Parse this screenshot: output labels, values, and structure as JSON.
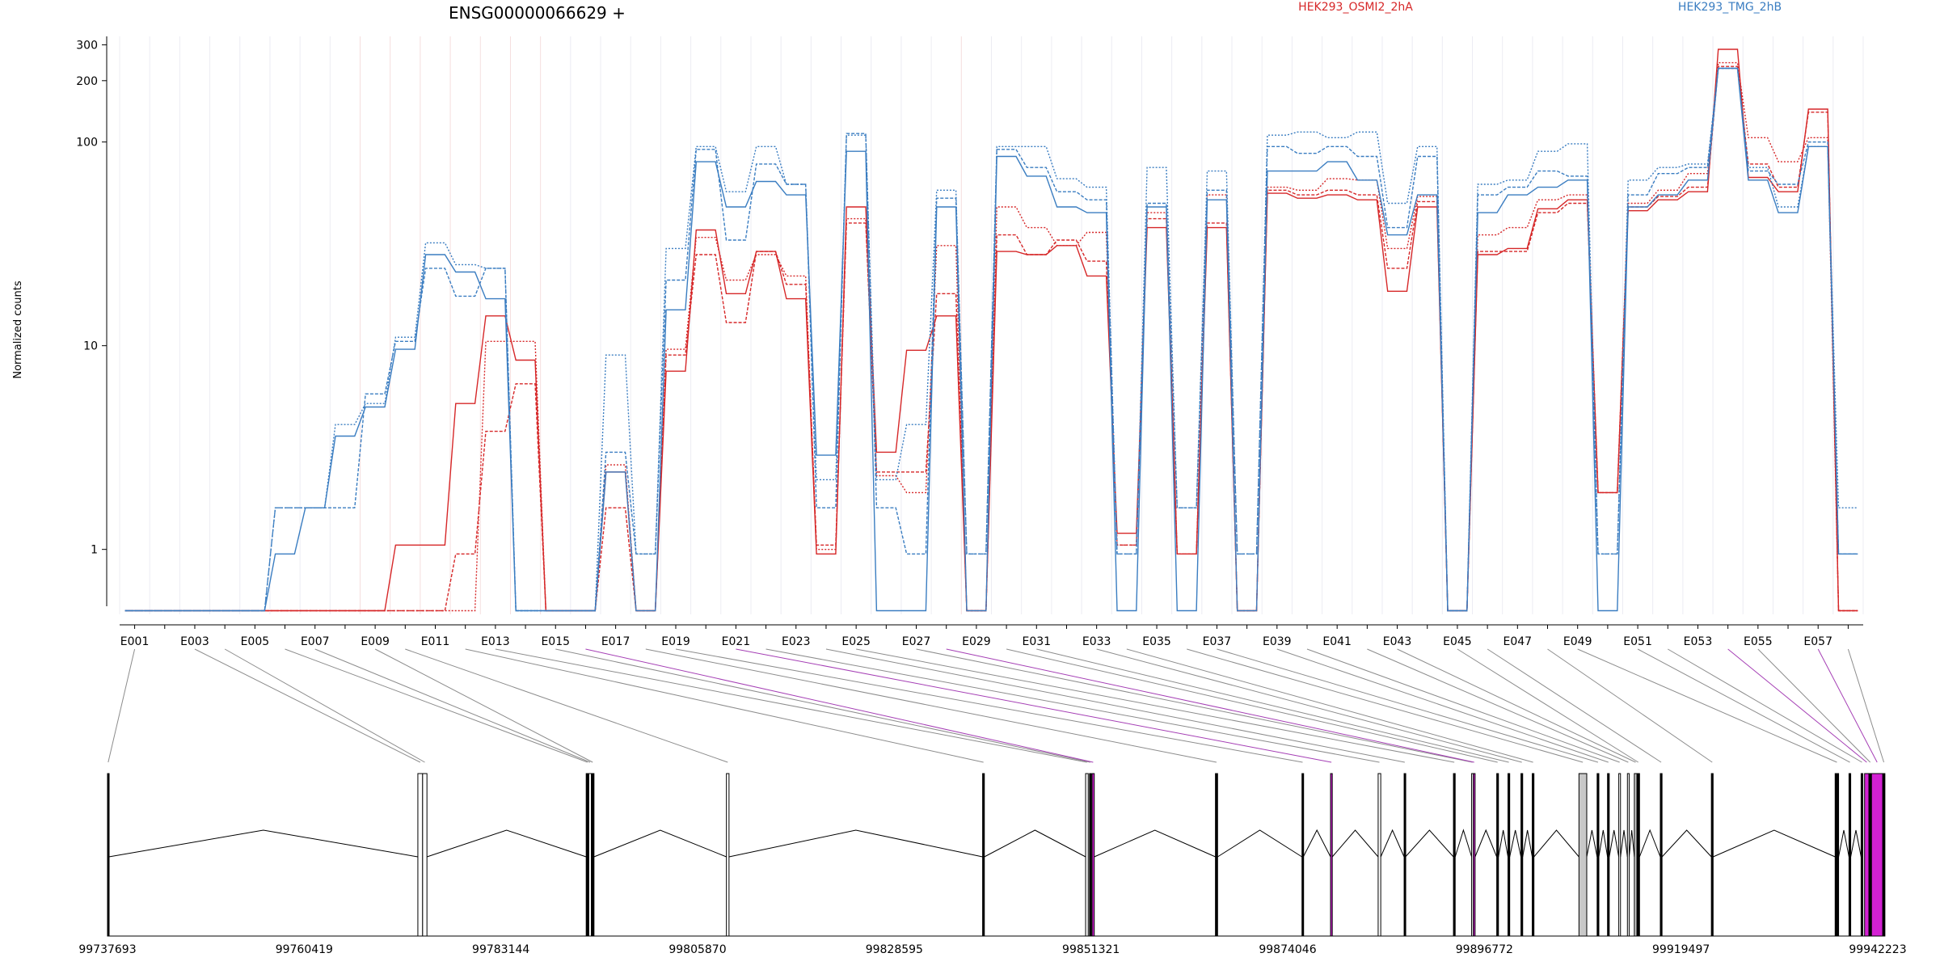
{
  "chart_data": {
    "type": "line",
    "title": "ENSG00000066629 +",
    "ylabel": "Normalized counts",
    "xlabel": "",
    "y_scale": "log",
    "y_ticks": [
      1,
      10,
      100,
      200,
      300
    ],
    "y_tick_labels": [
      "1",
      "10",
      "100",
      "200",
      "300"
    ],
    "ylim": [
      0.48,
      330
    ],
    "grid": "vertical per exon",
    "legend": [
      {
        "name": "HEK293_OSMI2_2hA",
        "color": "#d62728"
      },
      {
        "name": "HEK293_TMG_2hB",
        "color": "#3a7dc1"
      }
    ],
    "legend_placement": "top",
    "exon_tick_labels": [
      "E001",
      "E003",
      "E005",
      "E007",
      "E009",
      "E011",
      "E013",
      "E015",
      "E017",
      "E019",
      "E021",
      "E023",
      "E025",
      "E027",
      "E029",
      "E031",
      "E033",
      "E035",
      "E037",
      "E039",
      "E041",
      "E043",
      "E045",
      "E047",
      "E049",
      "E051",
      "E053",
      "E055",
      "E057"
    ],
    "series": [
      {
        "name": "HEK293_OSMI2_2hA",
        "color": "#d62728",
        "replicates": [
          [
            0.5,
            0.5,
            0.5,
            0.5,
            0.5,
            0.5,
            0.5,
            0.5,
            0.5,
            1.05,
            1.05,
            5.2,
            14.0,
            8.5,
            0.5,
            0.5,
            2.4,
            0.5,
            7.5,
            37,
            18,
            29,
            17,
            0.95,
            48,
            3.0,
            9.5,
            14,
            0.5,
            29,
            28,
            31,
            22,
            1.2,
            38,
            0.95,
            38,
            0.5,
            56,
            53,
            55,
            52,
            18.5,
            48,
            0.5,
            28,
            30,
            47,
            52,
            1.9,
            46,
            52,
            57,
            285,
            67,
            57,
            145,
            0.5
          ],
          [
            0.5,
            0.5,
            0.5,
            0.5,
            0.5,
            0.5,
            0.5,
            0.5,
            0.5,
            0.5,
            0.5,
            0.95,
            3.8,
            6.5,
            0.5,
            0.5,
            1.6,
            0.5,
            9.0,
            28,
            13,
            29,
            20,
            1.05,
            40,
            2.4,
            2.4,
            18,
            0.5,
            35,
            28,
            33,
            26,
            1.05,
            42,
            0.95,
            40,
            0.5,
            58,
            55,
            58,
            55,
            24,
            51,
            0.5,
            29,
            29,
            45,
            50,
            1.9,
            48,
            54,
            60,
            235,
            78,
            60,
            140,
            0.5
          ],
          [
            0.5,
            0.5,
            0.5,
            0.5,
            0.5,
            0.5,
            0.5,
            0.5,
            0.5,
            0.5,
            0.5,
            0.5,
            10.5,
            10.5,
            0.5,
            0.5,
            2.6,
            0.5,
            9.6,
            34,
            21,
            28,
            22,
            1.0,
            42,
            2.3,
            1.9,
            31,
            0.5,
            48,
            38,
            31,
            36,
            1.05,
            45,
            0.95,
            55,
            0.5,
            60,
            58,
            66,
            65,
            30,
            54,
            0.5,
            35,
            38,
            52,
            55,
            1.9,
            50,
            58,
            70,
            245,
            105,
            80,
            105,
            0.5
          ]
        ]
      },
      {
        "name": "HEK293_TMG_2hB",
        "color": "#3a7dc1",
        "replicates": [
          [
            0.5,
            0.5,
            0.5,
            0.5,
            0.5,
            0.95,
            1.6,
            3.6,
            5.0,
            9.6,
            28,
            23,
            17,
            0.5,
            0.5,
            0.5,
            2.4,
            0.5,
            15,
            80,
            48,
            64,
            55,
            2.9,
            90,
            0.5,
            0.5,
            48,
            0.5,
            85,
            68,
            48,
            45,
            0.5,
            48,
            0.5,
            52,
            0.5,
            72,
            72,
            80,
            65,
            35,
            55,
            0.5,
            45,
            55,
            60,
            65,
            0.5,
            48,
            55,
            65,
            230,
            65,
            45,
            95,
            0.95
          ],
          [
            0.5,
            0.5,
            0.5,
            0.5,
            0.5,
            1.6,
            1.6,
            1.6,
            5.8,
            10.5,
            24,
            17.5,
            24,
            0.5,
            0.5,
            0.5,
            3.0,
            0.95,
            21,
            92,
            33,
            78,
            62,
            1.6,
            110,
            1.6,
            0.95,
            53,
            0.95,
            92,
            75,
            57,
            52,
            0.95,
            50,
            1.6,
            58,
            0.95,
            95,
            88,
            95,
            85,
            38,
            85,
            0.5,
            55,
            60,
            72,
            68,
            0.95,
            55,
            70,
            75,
            230,
            72,
            62,
            100,
            0.95
          ],
          [
            0.5,
            0.5,
            0.5,
            0.5,
            0.5,
            1.6,
            1.6,
            4.1,
            5.2,
            11,
            32,
            25,
            24,
            0.5,
            0.5,
            0.5,
            9.0,
            0.95,
            30,
            95,
            57,
            95,
            62,
            2.2,
            108,
            2.2,
            4.1,
            58,
            0.95,
            95,
            95,
            66,
            60,
            0.95,
            75,
            1.6,
            72,
            0.95,
            108,
            112,
            105,
            112,
            50,
            95,
            0.5,
            62,
            65,
            90,
            98,
            0.95,
            65,
            75,
            78,
            230,
            75,
            48,
            95,
            1.6
          ]
        ]
      }
    ],
    "gene_model": {
      "coordinate_labels": [
        "99737693",
        "99760419",
        "99783144",
        "99805870",
        "99828595",
        "99851321",
        "99874046",
        "99896772",
        "99919497",
        "99942223"
      ],
      "coordinate_values": [
        99737693,
        99760419,
        99783144,
        99805870,
        99828595,
        99851321,
        99874046,
        99896772,
        99919497,
        99942223
      ],
      "exons": [
        {
          "start": 99737693,
          "end": 99737850,
          "color": "#000000"
        },
        {
          "start": 99773550,
          "end": 99774100,
          "color": "#ffffff"
        },
        {
          "start": 99774100,
          "end": 99774600,
          "color": "#ffffff"
        },
        {
          "start": 99793000,
          "end": 99793300,
          "color": "#000000"
        },
        {
          "start": 99793300,
          "end": 99793600,
          "color": "#ffffff"
        },
        {
          "start": 99793600,
          "end": 99793900,
          "color": "#000000"
        },
        {
          "start": 99809200,
          "end": 99809500,
          "color": "#ffffff"
        },
        {
          "start": 99838800,
          "end": 99839000,
          "color": "#000000"
        },
        {
          "start": 99850700,
          "end": 99851000,
          "color": "#ffffff"
        },
        {
          "start": 99851150,
          "end": 99851350,
          "color": "#000000"
        },
        {
          "start": 99851450,
          "end": 99851700,
          "color": "#d321d3"
        },
        {
          "start": 99865700,
          "end": 99865950,
          "color": "#000000"
        },
        {
          "start": 99875700,
          "end": 99875850,
          "color": "#000000"
        },
        {
          "start": 99879000,
          "end": 99879200,
          "color": "#d321d3"
        },
        {
          "start": 99884500,
          "end": 99884800,
          "color": "#ffffff"
        },
        {
          "start": 99887500,
          "end": 99887650,
          "color": "#000000"
        },
        {
          "start": 99893200,
          "end": 99893400,
          "color": "#000000"
        },
        {
          "start": 99895300,
          "end": 99895500,
          "color": "#ffffff"
        },
        {
          "start": 99895500,
          "end": 99895700,
          "color": "#d321d3"
        },
        {
          "start": 99898200,
          "end": 99898400,
          "color": "#000000"
        },
        {
          "start": 99899500,
          "end": 99899700,
          "color": "#000000"
        },
        {
          "start": 99901000,
          "end": 99901200,
          "color": "#000000"
        },
        {
          "start": 99902300,
          "end": 99902500,
          "color": "#000000"
        },
        {
          "start": 99907700,
          "end": 99908600,
          "color": "#c8c8c8"
        },
        {
          "start": 99909800,
          "end": 99910000,
          "color": "#000000"
        },
        {
          "start": 99911000,
          "end": 99911200,
          "color": "#000000"
        },
        {
          "start": 99912300,
          "end": 99912500,
          "color": "#ffffff"
        },
        {
          "start": 99913300,
          "end": 99913500,
          "color": "#ffffff"
        },
        {
          "start": 99914100,
          "end": 99914400,
          "color": "#c8c8c8"
        },
        {
          "start": 99914400,
          "end": 99914700,
          "color": "#000000"
        },
        {
          "start": 99917100,
          "end": 99917300,
          "color": "#000000"
        },
        {
          "start": 99923000,
          "end": 99923200,
          "color": "#000000"
        },
        {
          "start": 99937300,
          "end": 99937700,
          "color": "#000000"
        },
        {
          "start": 99938900,
          "end": 99939100,
          "color": "#000000"
        },
        {
          "start": 99940300,
          "end": 99940500,
          "color": "#000000"
        },
        {
          "start": 99940700,
          "end": 99941200,
          "color": "#d321d3"
        },
        {
          "start": 99941200,
          "end": 99941500,
          "color": "#000000"
        },
        {
          "start": 99941500,
          "end": 99942800,
          "color": "#d321d3"
        },
        {
          "start": 99942800,
          "end": 99943050,
          "color": "#000000"
        }
      ]
    }
  }
}
